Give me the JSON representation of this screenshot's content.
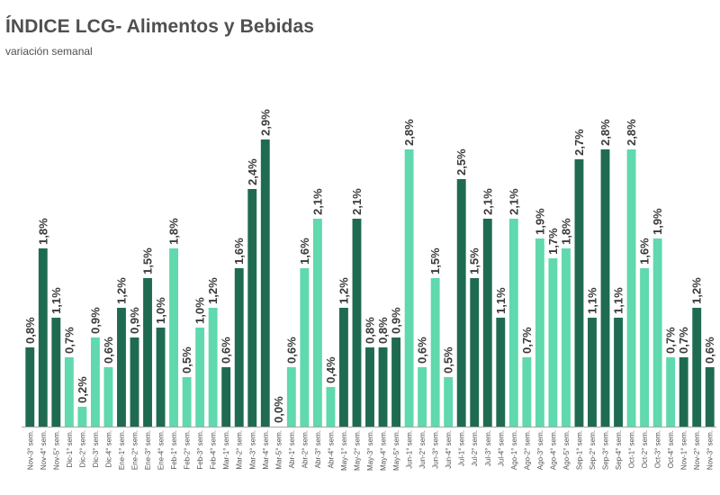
{
  "chart_data": {
    "type": "bar",
    "title": "ÍNDICE LCG- Alimentos y Bebidas",
    "subtitle": "variación semanal",
    "xlabel": "",
    "ylabel": "",
    "ylim": [
      0,
      3.0
    ],
    "grid": false,
    "legend": "none",
    "colors": {
      "dark": "#1f6b52",
      "light": "#5fd9ad",
      "baseline": "#a6a6a6",
      "label": "#3a3a3a",
      "title": "#505050"
    },
    "categories": [
      "Nov-3° sem.",
      "Nov-4° sem.",
      "Nov-5° sem.",
      "Dic-1° sem.",
      "Dic-2° sem.",
      "Dic-3° sem.",
      "Dic-4° sem.",
      "Ene-1° sem.",
      "Ene-2° sem.",
      "Ene-3° sem.",
      "Ene-4° sem.",
      "Feb-1° sem.",
      "Feb-2° sem.",
      "Feb-3° sem.",
      "Feb-4° sem.",
      "Mar-1° sem.",
      "Mar-2° sem.",
      "Mar-3° sem.",
      "Mar-4° sem.",
      "Mar-5° sem.",
      "Abr-1° sem.",
      "Abr-2° sem.",
      "Abr-3° sem.",
      "Abr-4° sem.",
      "May-1° sem.",
      "May-2° sem.",
      "May-3° sem.",
      "May-4° sem.",
      "May-5° sem.",
      "Jun-1° sem.",
      "Jun-2° sem.",
      "Jun-3° sem.",
      "Jun-4° sem.",
      "Jul-1° sem.",
      "Jul-2° sem.",
      "Jul-3° sem.",
      "Jul-4° sem.",
      "Ago-1° sem.",
      "Ago-2° sem.",
      "Ago-3° sem.",
      "Ago-4° sem.",
      "Ago-5° sem.",
      "Sep-1° sem.",
      "Sep-2° sem.",
      "Sep-3° sem.",
      "Sep-4° sem.",
      "Oct-1° sem.",
      "Oct-2° sem.",
      "Oct-3° sem.",
      "Oct-4° sem.",
      "Nov-1° sem.",
      "Nov-2° sem.",
      "Nov-3° sem."
    ],
    "values": [
      0.8,
      1.8,
      1.1,
      0.7,
      0.2,
      0.9,
      0.6,
      1.2,
      0.9,
      1.5,
      1.0,
      1.8,
      0.5,
      1.0,
      1.2,
      0.6,
      1.6,
      2.4,
      2.9,
      0.0,
      0.6,
      1.6,
      2.1,
      0.4,
      1.2,
      2.1,
      0.8,
      0.8,
      0.9,
      2.8,
      0.6,
      1.5,
      0.5,
      2.5,
      1.5,
      2.1,
      1.1,
      2.1,
      0.7,
      1.9,
      1.7,
      1.8,
      2.7,
      1.1,
      2.8,
      1.1,
      2.8,
      1.6,
      1.9,
      0.7,
      0.7,
      1.2,
      0.6
    ],
    "value_labels": [
      "0,8%",
      "1,8%",
      "1,1%",
      "0,7%",
      "0,2%",
      "0,9%",
      "0,6%",
      "1,2%",
      "0,9%",
      "1,5%",
      "1,0%",
      "1,8%",
      "0,5%",
      "1,0%",
      "1,2%",
      "0,6%",
      "1,6%",
      "2,4%",
      "2,9%",
      "0,0%",
      "0,6%",
      "1,6%",
      "2,1%",
      "0,4%",
      "1,2%",
      "2,1%",
      "0,8%",
      "0,8%",
      "0,9%",
      "2,8%",
      "0,6%",
      "1,5%",
      "0,5%",
      "2,5%",
      "1,5%",
      "2,1%",
      "1,1%",
      "2,1%",
      "0,7%",
      "1,9%",
      "1,7%",
      "1,8%",
      "2,7%",
      "1,1%",
      "2,8%",
      "1,1%",
      "2,8%",
      "1,6%",
      "1,9%",
      "0,7%",
      "0,7%",
      "1,2%",
      "0,6%"
    ],
    "bar_colors": [
      "dark",
      "dark",
      "dark",
      "light",
      "light",
      "light",
      "light",
      "dark",
      "dark",
      "dark",
      "dark",
      "light",
      "light",
      "light",
      "light",
      "dark",
      "dark",
      "dark",
      "dark",
      "dark",
      "light",
      "light",
      "light",
      "light",
      "dark",
      "dark",
      "dark",
      "dark",
      "dark",
      "light",
      "light",
      "light",
      "light",
      "dark",
      "dark",
      "dark",
      "dark",
      "light",
      "light",
      "light",
      "light",
      "light",
      "dark",
      "dark",
      "dark",
      "dark",
      "light",
      "light",
      "light",
      "light",
      "dark",
      "dark",
      "dark"
    ]
  }
}
